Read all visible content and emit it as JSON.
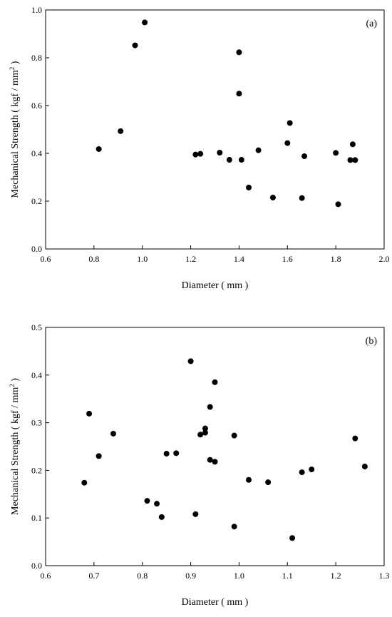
{
  "chart_data": [
    {
      "type": "scatter",
      "panel_label": "(a)",
      "xlabel": "Diameter ( mm )",
      "ylabel": "Mechanical Strength ( kgf / mm",
      "ylabel_sup": "2",
      "ylabel_end": " )",
      "xlim": [
        0.6,
        2.0
      ],
      "ylim": [
        0.0,
        1.0
      ],
      "xticks": [
        "0.6",
        "0.8",
        "1.0",
        "1.2",
        "1.4",
        "1.6",
        "1.8",
        "2.0"
      ],
      "yticks": [
        "0.0",
        "0.2",
        "0.4",
        "0.6",
        "0.8",
        "1.0"
      ],
      "grid": false,
      "points": [
        {
          "x": 0.82,
          "y": 0.418
        },
        {
          "x": 0.91,
          "y": 0.493
        },
        {
          "x": 0.97,
          "y": 0.852
        },
        {
          "x": 1.01,
          "y": 0.948
        },
        {
          "x": 1.22,
          "y": 0.395
        },
        {
          "x": 1.24,
          "y": 0.398
        },
        {
          "x": 1.32,
          "y": 0.403
        },
        {
          "x": 1.36,
          "y": 0.373
        },
        {
          "x": 1.4,
          "y": 0.823
        },
        {
          "x": 1.4,
          "y": 0.65
        },
        {
          "x": 1.41,
          "y": 0.373
        },
        {
          "x": 1.44,
          "y": 0.257
        },
        {
          "x": 1.48,
          "y": 0.413
        },
        {
          "x": 1.54,
          "y": 0.215
        },
        {
          "x": 1.6,
          "y": 0.443
        },
        {
          "x": 1.61,
          "y": 0.527
        },
        {
          "x": 1.66,
          "y": 0.213
        },
        {
          "x": 1.67,
          "y": 0.388
        },
        {
          "x": 1.8,
          "y": 0.402
        },
        {
          "x": 1.81,
          "y": 0.187
        },
        {
          "x": 1.86,
          "y": 0.372
        },
        {
          "x": 1.87,
          "y": 0.438
        },
        {
          "x": 1.88,
          "y": 0.372
        }
      ]
    },
    {
      "type": "scatter",
      "panel_label": "(b)",
      "xlabel": "Diameter ( mm )",
      "ylabel": "Mechanical Strength ( kgf / mm",
      "ylabel_sup": "2",
      "ylabel_end": " )",
      "xlim": [
        0.6,
        1.3
      ],
      "ylim": [
        0.0,
        0.5
      ],
      "xticks": [
        "0.6",
        "0.7",
        "0.8",
        "0.9",
        "1.0",
        "1.1",
        "1.2",
        "1.3"
      ],
      "yticks": [
        "0.0",
        "0.1",
        "0.2",
        "0.3",
        "0.4",
        "0.5"
      ],
      "grid": false,
      "points": [
        {
          "x": 0.68,
          "y": 0.174
        },
        {
          "x": 0.69,
          "y": 0.319
        },
        {
          "x": 0.71,
          "y": 0.23
        },
        {
          "x": 0.74,
          "y": 0.277
        },
        {
          "x": 0.81,
          "y": 0.136
        },
        {
          "x": 0.83,
          "y": 0.13
        },
        {
          "x": 0.84,
          "y": 0.102
        },
        {
          "x": 0.85,
          "y": 0.235
        },
        {
          "x": 0.87,
          "y": 0.236
        },
        {
          "x": 0.9,
          "y": 0.429
        },
        {
          "x": 0.91,
          "y": 0.108
        },
        {
          "x": 0.92,
          "y": 0.275
        },
        {
          "x": 0.93,
          "y": 0.288
        },
        {
          "x": 0.93,
          "y": 0.279
        },
        {
          "x": 0.94,
          "y": 0.333
        },
        {
          "x": 0.94,
          "y": 0.222
        },
        {
          "x": 0.95,
          "y": 0.385
        },
        {
          "x": 0.95,
          "y": 0.218
        },
        {
          "x": 0.99,
          "y": 0.273
        },
        {
          "x": 0.99,
          "y": 0.082
        },
        {
          "x": 1.02,
          "y": 0.18
        },
        {
          "x": 1.06,
          "y": 0.175
        },
        {
          "x": 1.11,
          "y": 0.058
        },
        {
          "x": 1.13,
          "y": 0.196
        },
        {
          "x": 1.15,
          "y": 0.202
        },
        {
          "x": 1.24,
          "y": 0.267
        },
        {
          "x": 1.26,
          "y": 0.208
        }
      ]
    }
  ]
}
